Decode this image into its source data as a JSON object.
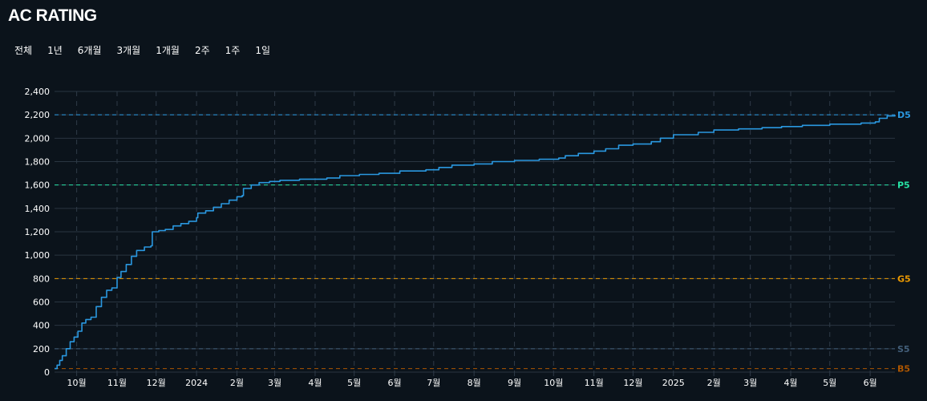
{
  "header": {
    "title": "AC RATING"
  },
  "ranges": [
    {
      "label": "전체"
    },
    {
      "label": "1년"
    },
    {
      "label": "6개월"
    },
    {
      "label": "3개월"
    },
    {
      "label": "1개월"
    },
    {
      "label": "2주"
    },
    {
      "label": "1주"
    },
    {
      "label": "1일"
    }
  ],
  "colors": {
    "background": "#0b131b",
    "line": "#2a98e0",
    "grid": "#2a3541",
    "vgrid": "#2f3b48"
  },
  "chart_data": {
    "type": "line",
    "title": "",
    "xlabel": "",
    "ylabel": "",
    "ylim": [
      0,
      2400
    ],
    "y_ticks": [
      "0",
      "200",
      "400",
      "600",
      "800",
      "1,000",
      "1,200",
      "1,400",
      "1,600",
      "1,800",
      "2,000",
      "2,200",
      "2,400"
    ],
    "x_ticks": [
      "10월",
      "11월",
      "12월",
      "2024",
      "2월",
      "3월",
      "4월",
      "5월",
      "6월",
      "7월",
      "8월",
      "9월",
      "10월",
      "11월",
      "12월",
      "2025",
      "2월",
      "3월",
      "4월",
      "5월",
      "6월"
    ],
    "x_tick_dates": [
      "2023-10-01",
      "2023-11-01",
      "2023-12-01",
      "2024-01-01",
      "2024-02-01",
      "2024-03-01",
      "2024-04-01",
      "2024-05-01",
      "2024-06-01",
      "2024-07-01",
      "2024-08-01",
      "2024-09-01",
      "2024-10-01",
      "2024-11-01",
      "2024-12-01",
      "2025-01-01",
      "2025-02-01",
      "2025-03-01",
      "2025-04-01",
      "2025-05-01",
      "2025-06-01"
    ],
    "xlim": [
      "2023-09-14",
      "2025-06-20"
    ],
    "grid": true,
    "tiers": [
      {
        "label": "D5",
        "value": 2200,
        "color": "#2a98e0"
      },
      {
        "label": "P5",
        "value": 1600,
        "color": "#27e2a4"
      },
      {
        "label": "G5",
        "value": 800,
        "color": "#ec9a00"
      },
      {
        "label": "S5",
        "value": 200,
        "color": "#435f7a"
      },
      {
        "label": "B5",
        "value": 30,
        "color": "#ad5600"
      }
    ],
    "series": [
      {
        "values": [
          [
            "2023-09-14",
            30
          ],
          [
            "2023-09-16",
            60
          ],
          [
            "2023-09-18",
            100
          ],
          [
            "2023-09-20",
            140
          ],
          [
            "2023-09-23",
            200
          ],
          [
            "2023-09-26",
            260
          ],
          [
            "2023-09-29",
            300
          ],
          [
            "2023-10-02",
            350
          ],
          [
            "2023-10-05",
            420
          ],
          [
            "2023-10-08",
            450
          ],
          [
            "2023-10-12",
            470
          ],
          [
            "2023-10-16",
            560
          ],
          [
            "2023-10-20",
            640
          ],
          [
            "2023-10-24",
            700
          ],
          [
            "2023-10-28",
            720
          ],
          [
            "2023-11-01",
            810
          ],
          [
            "2023-11-04",
            860
          ],
          [
            "2023-11-08",
            920
          ],
          [
            "2023-11-12",
            990
          ],
          [
            "2023-11-16",
            1040
          ],
          [
            "2023-11-22",
            1070
          ],
          [
            "2023-11-27",
            1080
          ],
          [
            "2023-11-28",
            1200
          ],
          [
            "2023-12-03",
            1210
          ],
          [
            "2023-12-08",
            1220
          ],
          [
            "2023-12-14",
            1250
          ],
          [
            "2023-12-20",
            1270
          ],
          [
            "2023-12-26",
            1290
          ],
          [
            "2024-01-01",
            1320
          ],
          [
            "2024-01-02",
            1360
          ],
          [
            "2024-01-08",
            1380
          ],
          [
            "2024-01-14",
            1410
          ],
          [
            "2024-01-20",
            1440
          ],
          [
            "2024-01-26",
            1470
          ],
          [
            "2024-02-01",
            1500
          ],
          [
            "2024-02-05",
            1510
          ],
          [
            "2024-02-06",
            1570
          ],
          [
            "2024-02-12",
            1600
          ],
          [
            "2024-02-18",
            1620
          ],
          [
            "2024-02-26",
            1630
          ],
          [
            "2024-03-05",
            1640
          ],
          [
            "2024-03-20",
            1650
          ],
          [
            "2024-04-10",
            1660
          ],
          [
            "2024-04-20",
            1680
          ],
          [
            "2024-05-05",
            1690
          ],
          [
            "2024-05-20",
            1700
          ],
          [
            "2024-06-05",
            1720
          ],
          [
            "2024-06-25",
            1730
          ],
          [
            "2024-07-05",
            1750
          ],
          [
            "2024-07-15",
            1770
          ],
          [
            "2024-08-01",
            1780
          ],
          [
            "2024-08-15",
            1800
          ],
          [
            "2024-09-01",
            1810
          ],
          [
            "2024-09-20",
            1820
          ],
          [
            "2024-10-05",
            1830
          ],
          [
            "2024-10-10",
            1850
          ],
          [
            "2024-10-20",
            1870
          ],
          [
            "2024-11-01",
            1890
          ],
          [
            "2024-11-10",
            1910
          ],
          [
            "2024-11-20",
            1940
          ],
          [
            "2024-12-01",
            1950
          ],
          [
            "2024-12-15",
            1970
          ],
          [
            "2024-12-22",
            2000
          ],
          [
            "2025-01-01",
            2030
          ],
          [
            "2025-01-20",
            2050
          ],
          [
            "2025-02-01",
            2070
          ],
          [
            "2025-02-20",
            2080
          ],
          [
            "2025-03-10",
            2090
          ],
          [
            "2025-03-25",
            2100
          ],
          [
            "2025-04-10",
            2110
          ],
          [
            "2025-05-01",
            2120
          ],
          [
            "2025-05-25",
            2130
          ],
          [
            "2025-06-05",
            2140
          ],
          [
            "2025-06-08",
            2170
          ],
          [
            "2025-06-14",
            2190
          ],
          [
            "2025-06-20",
            2200
          ]
        ]
      }
    ]
  }
}
